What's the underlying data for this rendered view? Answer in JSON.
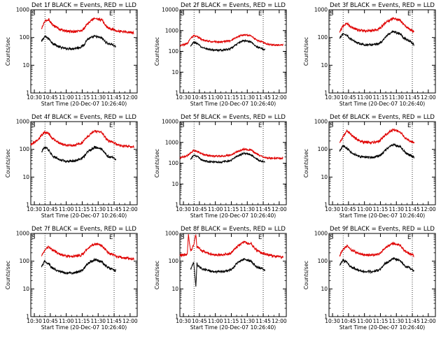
{
  "common": {
    "xlabel": "Start Time (20-Dec-07 10:26:40)",
    "ylabel": "Counts/sec",
    "xticks": [
      "10:30",
      "10:45",
      "11:00",
      "11:15",
      "11:30",
      "11:45",
      "12:00"
    ],
    "yticks": [
      "1",
      "10",
      "100",
      "1000"
    ],
    "marker_start": "S",
    "marker_end": "E"
  },
  "colors": {
    "events": "#000000",
    "lld": "#e00000"
  },
  "chart_data": [
    {
      "type": "line",
      "title": "Det 1f BLACK = Events, RED = LLD",
      "x_unit": "minutes after 10:26:40",
      "xlim": [
        0,
        100
      ],
      "ylim": [
        1,
        1000
      ],
      "yscale": "log",
      "markers_x": [
        13.3,
        78.3
      ],
      "series": [
        {
          "name": "Events",
          "x": [
            10,
            13,
            17,
            20,
            27,
            33,
            40,
            47,
            50,
            53,
            57,
            60,
            67,
            70,
            73,
            77,
            80
          ],
          "y": [
            70,
            110,
            90,
            65,
            45,
            40,
            40,
            45,
            55,
            85,
            100,
            110,
            95,
            70,
            60,
            55,
            45
          ]
        },
        {
          "name": "LLD",
          "x": [
            10,
            13,
            17,
            20,
            27,
            33,
            40,
            47,
            50,
            53,
            57,
            60,
            67,
            70,
            73,
            77,
            80,
            83,
            90,
            97
          ],
          "y": [
            200,
            380,
            450,
            300,
            200,
            170,
            165,
            175,
            210,
            300,
            420,
            490,
            430,
            280,
            220,
            200,
            180,
            170,
            160,
            150
          ]
        }
      ]
    },
    {
      "type": "line",
      "title": "Det 2f BLACK = Events, RED = LLD",
      "x_unit": "minutes after 10:26:40",
      "xlim": [
        0,
        100
      ],
      "ylim": [
        1,
        10000
      ],
      "yscale": "log",
      "markers_x": [
        13.3,
        78.3
      ],
      "series": [
        {
          "name": "Events",
          "x": [
            10,
            13,
            17,
            20,
            27,
            33,
            40,
            47,
            50,
            53,
            57,
            60,
            67,
            70,
            73,
            77,
            80
          ],
          "y": [
            170,
            280,
            230,
            160,
            125,
            115,
            115,
            130,
            160,
            220,
            290,
            330,
            290,
            200,
            160,
            135,
            120
          ]
        },
        {
          "name": "LLD",
          "x": [
            0,
            7,
            10,
            13,
            17,
            20,
            27,
            33,
            40,
            47,
            50,
            53,
            57,
            60,
            67,
            70,
            73,
            77,
            80,
            83,
            90,
            97
          ],
          "y": [
            190,
            240,
            420,
            580,
            500,
            380,
            310,
            290,
            290,
            320,
            370,
            460,
            570,
            630,
            560,
            420,
            330,
            290,
            240,
            215,
            200,
            200
          ]
        }
      ]
    },
    {
      "type": "line",
      "title": "Det 3f BLACK = Events, RED = LLD",
      "x_unit": "minutes after 10:26:40",
      "xlim": [
        0,
        100
      ],
      "ylim": [
        1,
        1000
      ],
      "yscale": "log",
      "markers_x": [
        13.3,
        78.3
      ],
      "series": [
        {
          "name": "Events",
          "x": [
            10,
            13,
            17,
            20,
            27,
            33,
            40,
            47,
            50,
            53,
            57,
            60,
            67,
            70,
            73,
            77,
            80
          ],
          "y": [
            90,
            140,
            120,
            90,
            65,
            55,
            55,
            60,
            75,
            105,
            135,
            160,
            135,
            100,
            85,
            70,
            55
          ]
        },
        {
          "name": "LLD",
          "x": [
            10,
            13,
            17,
            20,
            27,
            33,
            40,
            47,
            50,
            53,
            57,
            60,
            67,
            70,
            73,
            77,
            80
          ],
          "y": [
            160,
            250,
            330,
            250,
            190,
            175,
            175,
            200,
            260,
            340,
            420,
            500,
            420,
            300,
            230,
            190,
            160
          ]
        }
      ]
    },
    {
      "type": "line",
      "title": "Det 4f BLACK = Events, RED = LLD",
      "x_unit": "minutes after 10:26:40",
      "xlim": [
        0,
        100
      ],
      "ylim": [
        1,
        1000
      ],
      "yscale": "log",
      "markers_x": [
        13.3,
        78.3
      ],
      "series": [
        {
          "name": "Events",
          "x": [
            10,
            13,
            17,
            20,
            27,
            33,
            40,
            47,
            50,
            53,
            57,
            60,
            67,
            70,
            73,
            77,
            80
          ],
          "y": [
            80,
            120,
            95,
            60,
            42,
            38,
            38,
            45,
            55,
            80,
            100,
            120,
            100,
            70,
            55,
            50,
            42
          ]
        },
        {
          "name": "LLD",
          "x": [
            0,
            7,
            10,
            13,
            17,
            20,
            27,
            33,
            40,
            47,
            50,
            53,
            57,
            60,
            67,
            70,
            73,
            77,
            80,
            83,
            90,
            97
          ],
          "y": [
            150,
            230,
            320,
            420,
            380,
            250,
            170,
            140,
            140,
            160,
            200,
            280,
            380,
            460,
            400,
            270,
            200,
            180,
            160,
            140,
            130,
            125
          ]
        }
      ]
    },
    {
      "type": "line",
      "title": "Det 5f BLACK = Events, RED = LLD",
      "x_unit": "minutes after 10:26:40",
      "xlim": [
        0,
        100
      ],
      "ylim": [
        1,
        10000
      ],
      "yscale": "log",
      "markers_x": [
        13.3,
        78.3
      ],
      "series": [
        {
          "name": "Events",
          "x": [
            10,
            13,
            17,
            20,
            27,
            33,
            40,
            47,
            50,
            53,
            57,
            60,
            67,
            70,
            73,
            77,
            80
          ],
          "y": [
            160,
            240,
            200,
            150,
            120,
            115,
            115,
            130,
            160,
            210,
            260,
            300,
            260,
            190,
            150,
            125,
            110
          ]
        },
        {
          "name": "LLD",
          "x": [
            0,
            7,
            10,
            13,
            17,
            20,
            27,
            33,
            40,
            47,
            50,
            53,
            57,
            60,
            67,
            70,
            73,
            77,
            80,
            83,
            90,
            97
          ],
          "y": [
            180,
            230,
            320,
            400,
            360,
            290,
            230,
            220,
            220,
            245,
            280,
            350,
            420,
            480,
            430,
            330,
            260,
            220,
            190,
            180,
            175,
            175
          ]
        }
      ]
    },
    {
      "type": "line",
      "title": "Det 6f BLACK = Events, RED = LLD",
      "x_unit": "minutes after 10:26:40",
      "xlim": [
        0,
        100
      ],
      "ylim": [
        1,
        1000
      ],
      "yscale": "log",
      "markers_x": [
        13.3,
        78.3
      ],
      "series": [
        {
          "name": "Events",
          "x": [
            10,
            13,
            17,
            20,
            27,
            33,
            40,
            47,
            50,
            53,
            57,
            60,
            67,
            70,
            73,
            77,
            80
          ],
          "y": [
            90,
            130,
            110,
            80,
            58,
            52,
            52,
            58,
            70,
            95,
            125,
            150,
            125,
            90,
            70,
            60,
            50
          ]
        },
        {
          "name": "LLD",
          "x": [
            10,
            13,
            17,
            20,
            27,
            33,
            40,
            47,
            50,
            53,
            57,
            60,
            67,
            70,
            73,
            77,
            80
          ],
          "y": [
            170,
            280,
            480,
            350,
            220,
            180,
            175,
            195,
            250,
            340,
            430,
            500,
            430,
            300,
            230,
            200,
            170
          ]
        }
      ]
    },
    {
      "type": "line",
      "title": "Det 7f BLACK = Events, RED = LLD",
      "x_unit": "minutes after 10:26:40",
      "xlim": [
        0,
        100
      ],
      "ylim": [
        1,
        1000
      ],
      "yscale": "log",
      "markers_x": [
        13.3,
        78.3
      ],
      "series": [
        {
          "name": "Events",
          "x": [
            10,
            13,
            17,
            20,
            27,
            33,
            40,
            47,
            50,
            53,
            57,
            60,
            67,
            70,
            73,
            77,
            80
          ],
          "y": [
            60,
            100,
            80,
            58,
            42,
            38,
            38,
            44,
            55,
            80,
            100,
            115,
            95,
            70,
            58,
            52,
            45
          ]
        },
        {
          "name": "LLD",
          "x": [
            10,
            13,
            17,
            20,
            27,
            33,
            40,
            47,
            50,
            53,
            57,
            60,
            67,
            70,
            73,
            77,
            80,
            83,
            90,
            97
          ],
          "y": [
            150,
            250,
            330,
            260,
            180,
            155,
            150,
            165,
            200,
            280,
            360,
            420,
            370,
            260,
            200,
            175,
            150,
            140,
            130,
            120
          ]
        }
      ]
    },
    {
      "type": "line",
      "title": "Det 8f BLACK = Events, RED = LLD",
      "x_unit": "minutes after 10:26:40",
      "xlim": [
        0,
        100
      ],
      "ylim": [
        1,
        1000
      ],
      "yscale": "log",
      "markers_x": [
        13.3,
        78.3
      ],
      "series": [
        {
          "name": "Events",
          "x": [
            10,
            13,
            15,
            16,
            17,
            20,
            27,
            33,
            40,
            47,
            50,
            53,
            57,
            60,
            67,
            70,
            73,
            77,
            80
          ],
          "y": [
            50,
            90,
            12,
            80,
            70,
            55,
            45,
            42,
            42,
            48,
            58,
            80,
            100,
            120,
            100,
            75,
            60,
            55,
            48
          ]
        },
        {
          "name": "LLD",
          "x": [
            0,
            7,
            8,
            10,
            13,
            15,
            16,
            17,
            20,
            27,
            33,
            40,
            47,
            50,
            53,
            57,
            60,
            67,
            70,
            73,
            77,
            80,
            83,
            90,
            97
          ],
          "y": [
            160,
            180,
            950,
            230,
            380,
            950,
            300,
            320,
            250,
            190,
            170,
            170,
            190,
            230,
            320,
            420,
            480,
            420,
            300,
            230,
            200,
            180,
            170,
            150,
            140
          ]
        }
      ]
    },
    {
      "type": "line",
      "title": "Det 9f BLACK = Events, RED = LLD",
      "x_unit": "minutes after 10:26:40",
      "xlim": [
        0,
        100
      ],
      "ylim": [
        1,
        1000
      ],
      "yscale": "log",
      "markers_x": [
        13.3,
        78.3
      ],
      "series": [
        {
          "name": "Events",
          "x": [
            10,
            13,
            17,
            20,
            27,
            33,
            40,
            47,
            50,
            53,
            57,
            60,
            67,
            70,
            73,
            77,
            80
          ],
          "y": [
            70,
            110,
            90,
            65,
            48,
            42,
            42,
            48,
            60,
            85,
            105,
            125,
            105,
            75,
            62,
            55,
            45
          ]
        },
        {
          "name": "LLD",
          "x": [
            10,
            13,
            17,
            20,
            27,
            33,
            40,
            47,
            50,
            53,
            57,
            60,
            67,
            70,
            73,
            77,
            80
          ],
          "y": [
            160,
            260,
            360,
            270,
            195,
            170,
            165,
            180,
            230,
            310,
            380,
            440,
            380,
            270,
            210,
            180,
            160
          ]
        }
      ]
    }
  ]
}
